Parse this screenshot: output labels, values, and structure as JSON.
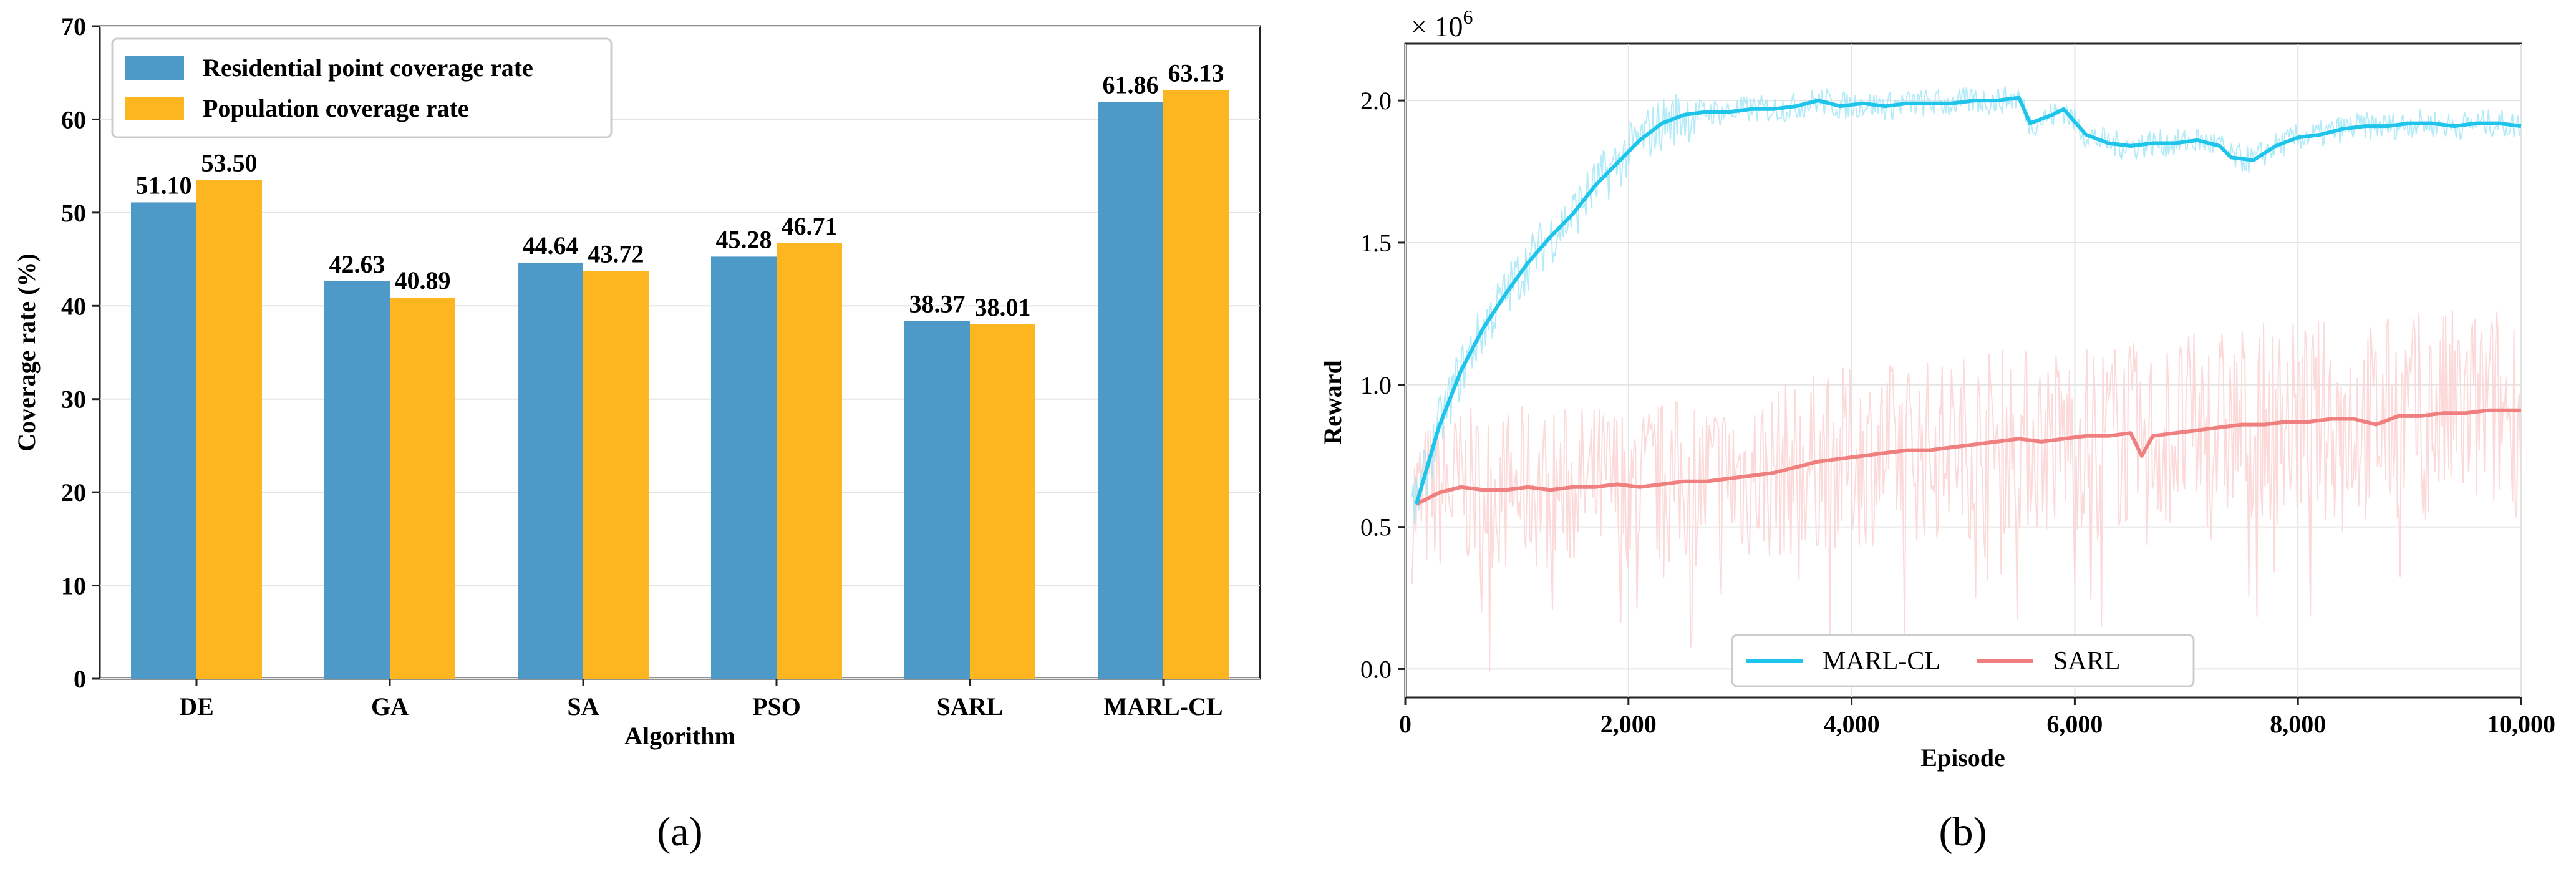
{
  "chart_data": [
    {
      "type": "bar",
      "panel_label": "(a)",
      "title": "",
      "xlabel": "Algorithm",
      "ylabel": "Coverage rate (%)",
      "ylim": [
        0,
        70
      ],
      "yticks": [
        0,
        10,
        20,
        30,
        40,
        50,
        60,
        70
      ],
      "grid": true,
      "legend_position": "top-left",
      "categories": [
        "DE",
        "GA",
        "SA",
        "PSO",
        "SARL",
        "MARL-CL"
      ],
      "series": [
        {
          "name": "Residential point coverage rate",
          "color": "#4d9ac8",
          "values": [
            51.1,
            42.63,
            44.64,
            45.28,
            38.37,
            61.86
          ],
          "labels": [
            "51.10",
            "42.63",
            "44.64",
            "45.28",
            "38.37",
            "61.86"
          ]
        },
        {
          "name": "Population coverage rate",
          "color": "#fdb61f",
          "values": [
            53.5,
            40.89,
            43.72,
            46.71,
            38.01,
            63.13
          ],
          "labels": [
            "53.50",
            "40.89",
            "43.72",
            "46.71",
            "38.01",
            "63.13"
          ]
        }
      ]
    },
    {
      "type": "line",
      "panel_label": "(b)",
      "title": "",
      "xlabel": "Episode",
      "ylabel": "Reward",
      "y_scale_label": "× 10",
      "y_scale_exponent": "6",
      "xlim": [
        0,
        10000
      ],
      "ylim": [
        -0.1,
        2.2
      ],
      "xticks": [
        0,
        2000,
        4000,
        6000,
        8000,
        10000
      ],
      "xtick_labels": [
        "0",
        "2,000",
        "4,000",
        "6,000",
        "8,000",
        "10,000"
      ],
      "yticks": [
        0.0,
        0.5,
        1.0,
        1.5,
        2.0
      ],
      "ytick_labels": [
        "0.0",
        "0.5",
        "1.0",
        "1.5",
        "2.0"
      ],
      "grid": true,
      "legend_position": "bottom-center",
      "series": [
        {
          "name": "MARL-CL",
          "color": "#1ec4ea",
          "raw_color": "#a6e8f7",
          "x": [
            100,
            300,
            500,
            700,
            900,
            1100,
            1300,
            1500,
            1700,
            1900,
            2100,
            2300,
            2500,
            2700,
            2900,
            3100,
            3300,
            3500,
            3700,
            3900,
            4100,
            4300,
            4500,
            4700,
            4900,
            5100,
            5300,
            5500,
            5600,
            5800,
            5900,
            6100,
            6300,
            6500,
            6700,
            6900,
            7100,
            7300,
            7400,
            7600,
            7800,
            8000,
            8200,
            8400,
            8600,
            8800,
            9000,
            9200,
            9400,
            9600,
            9800,
            10000
          ],
          "values": [
            0.58,
            0.85,
            1.05,
            1.2,
            1.32,
            1.43,
            1.52,
            1.6,
            1.7,
            1.78,
            1.86,
            1.92,
            1.95,
            1.96,
            1.96,
            1.97,
            1.97,
            1.98,
            2.0,
            1.98,
            1.99,
            1.98,
            1.99,
            1.99,
            1.99,
            2.0,
            2.0,
            2.01,
            1.92,
            1.95,
            1.97,
            1.88,
            1.85,
            1.84,
            1.85,
            1.85,
            1.86,
            1.84,
            1.8,
            1.79,
            1.84,
            1.87,
            1.88,
            1.9,
            1.91,
            1.91,
            1.92,
            1.92,
            1.91,
            1.92,
            1.92,
            1.91
          ]
        },
        {
          "name": "SARL",
          "color": "#f08080",
          "raw_color": "#fbd3d3",
          "x": [
            100,
            300,
            500,
            700,
            900,
            1100,
            1300,
            1500,
            1700,
            1900,
            2100,
            2300,
            2500,
            2700,
            2900,
            3100,
            3300,
            3500,
            3700,
            3900,
            4100,
            4300,
            4500,
            4700,
            4900,
            5100,
            5300,
            5500,
            5700,
            5900,
            6100,
            6300,
            6500,
            6600,
            6700,
            6900,
            7100,
            7300,
            7500,
            7700,
            7900,
            8100,
            8300,
            8500,
            8700,
            8900,
            9100,
            9300,
            9500,
            9700,
            9900,
            10000
          ],
          "values": [
            0.58,
            0.62,
            0.64,
            0.63,
            0.63,
            0.64,
            0.63,
            0.64,
            0.64,
            0.65,
            0.64,
            0.65,
            0.66,
            0.66,
            0.67,
            0.68,
            0.69,
            0.71,
            0.73,
            0.74,
            0.75,
            0.76,
            0.77,
            0.77,
            0.78,
            0.79,
            0.8,
            0.81,
            0.8,
            0.81,
            0.82,
            0.82,
            0.83,
            0.75,
            0.82,
            0.83,
            0.84,
            0.85,
            0.86,
            0.86,
            0.87,
            0.87,
            0.88,
            0.88,
            0.86,
            0.89,
            0.89,
            0.9,
            0.9,
            0.91,
            0.91,
            0.91
          ]
        }
      ]
    }
  ]
}
